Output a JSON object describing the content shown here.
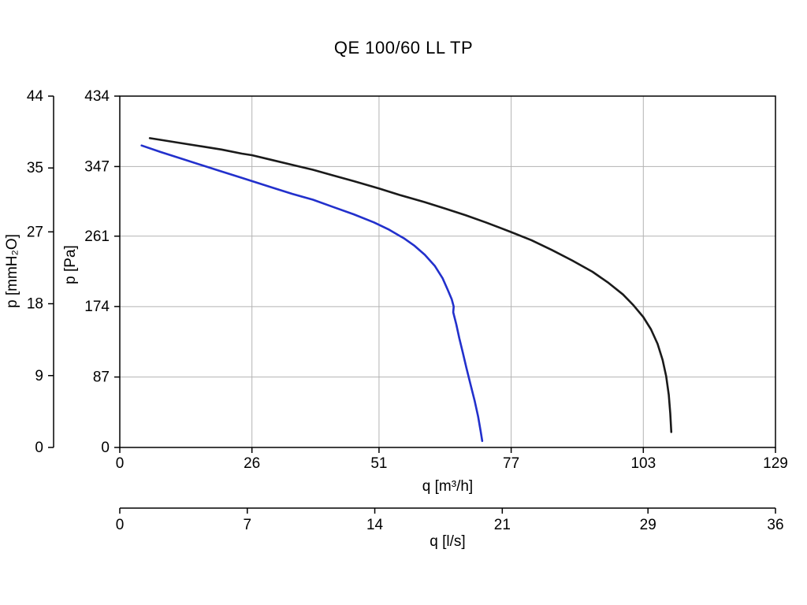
{
  "chart_data": {
    "type": "line",
    "title": "QE 100/60 LL TP",
    "grid": true,
    "legend": false,
    "x_axes": [
      {
        "id": "q_m3h",
        "label": "q [m³/h]",
        "range": [
          0,
          129
        ],
        "ticks": [
          0,
          26,
          51,
          77,
          103,
          129
        ]
      },
      {
        "id": "q_ls",
        "label": "q [l/s]",
        "range": [
          0,
          36
        ],
        "ticks": [
          0,
          7,
          14,
          21,
          29,
          36
        ]
      }
    ],
    "y_axes": [
      {
        "id": "p_mmh2o",
        "label": "p [mmH₂O]",
        "range": [
          0,
          44
        ],
        "ticks": [
          0,
          9,
          18,
          27,
          35,
          44
        ]
      },
      {
        "id": "p_pa",
        "label": "p [Pa]",
        "range": [
          0,
          434
        ],
        "ticks": [
          0,
          87,
          174,
          261,
          347,
          434
        ]
      }
    ],
    "series": [
      {
        "name": "curve-black",
        "color": "#1a1a1a",
        "x_unit": "m³/h",
        "y_unit": "Pa",
        "x": [
          5.9,
          8,
          12,
          16,
          20,
          24,
          26,
          30,
          34,
          38,
          42,
          46,
          51,
          55,
          60,
          64,
          68,
          72,
          77,
          81,
          85,
          89,
          93,
          96,
          99,
          101,
          103,
          104.5,
          105.8,
          106.8,
          107.5,
          108,
          108.3,
          108.5
        ],
        "y": [
          382,
          380,
          376,
          372,
          368,
          363,
          361,
          355,
          349,
          343,
          336,
          329,
          320,
          312,
          303,
          295,
          287,
          278,
          266,
          256,
          244,
          231,
          217,
          204,
          189,
          176,
          161,
          146,
          128,
          108,
          88,
          65,
          42,
          19
        ]
      },
      {
        "name": "curve-blue",
        "color": "#2230cc",
        "x_unit": "m³/h",
        "y_unit": "Pa",
        "x": [
          4.3,
          8,
          12,
          16,
          20,
          24,
          26,
          30,
          34,
          38,
          42,
          46,
          50,
          53,
          56,
          58,
          60,
          62,
          63.5,
          64.5,
          65.3,
          65.7,
          65.6,
          66.2,
          66.8,
          67.5,
          68.2,
          69,
          69.8,
          70.5,
          71,
          71.3
        ],
        "y": [
          373,
          365,
          357,
          349,
          341,
          333,
          329,
          321,
          313,
          306,
          297,
          288,
          278,
          269,
          258,
          249,
          238,
          224,
          209,
          195,
          183,
          174,
          167,
          152,
          135,
          117,
          98,
          78,
          58,
          38,
          20,
          8
        ]
      }
    ]
  }
}
